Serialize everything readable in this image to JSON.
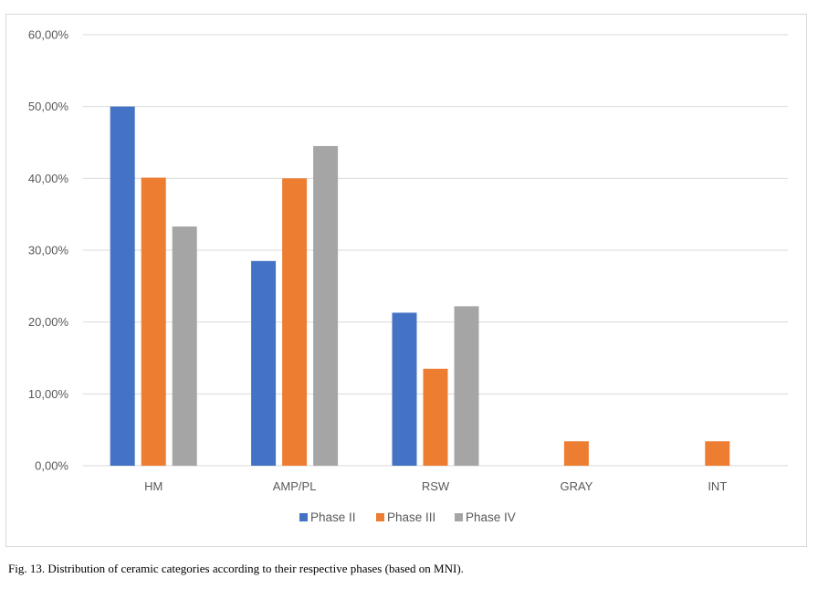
{
  "caption": "Fig. 13. Distribution of ceramic categories according to their respective phases (based on MNI).",
  "chart_data": {
    "type": "bar",
    "categories": [
      "HM",
      "AMP/PL",
      "RSW",
      "GRAY",
      "INT"
    ],
    "series": [
      {
        "name": "Phase II",
        "color": "#4472c4",
        "values": [
          50.0,
          28.5,
          21.3,
          0,
          0
        ]
      },
      {
        "name": "Phase III",
        "color": "#ed7d31",
        "values": [
          40.1,
          40.0,
          13.5,
          3.4,
          3.4
        ]
      },
      {
        "name": "Phase IV",
        "color": "#a5a5a5",
        "values": [
          33.3,
          44.5,
          22.2,
          0,
          0
        ]
      }
    ],
    "yticks": [
      "0,00%",
      "10,00%",
      "20,00%",
      "30,00%",
      "40,00%",
      "50,00%",
      "60,00%"
    ],
    "ylim": [
      0,
      60
    ],
    "grid": true,
    "legend_position": "bottom",
    "title": "",
    "xlabel": "",
    "ylabel": ""
  }
}
